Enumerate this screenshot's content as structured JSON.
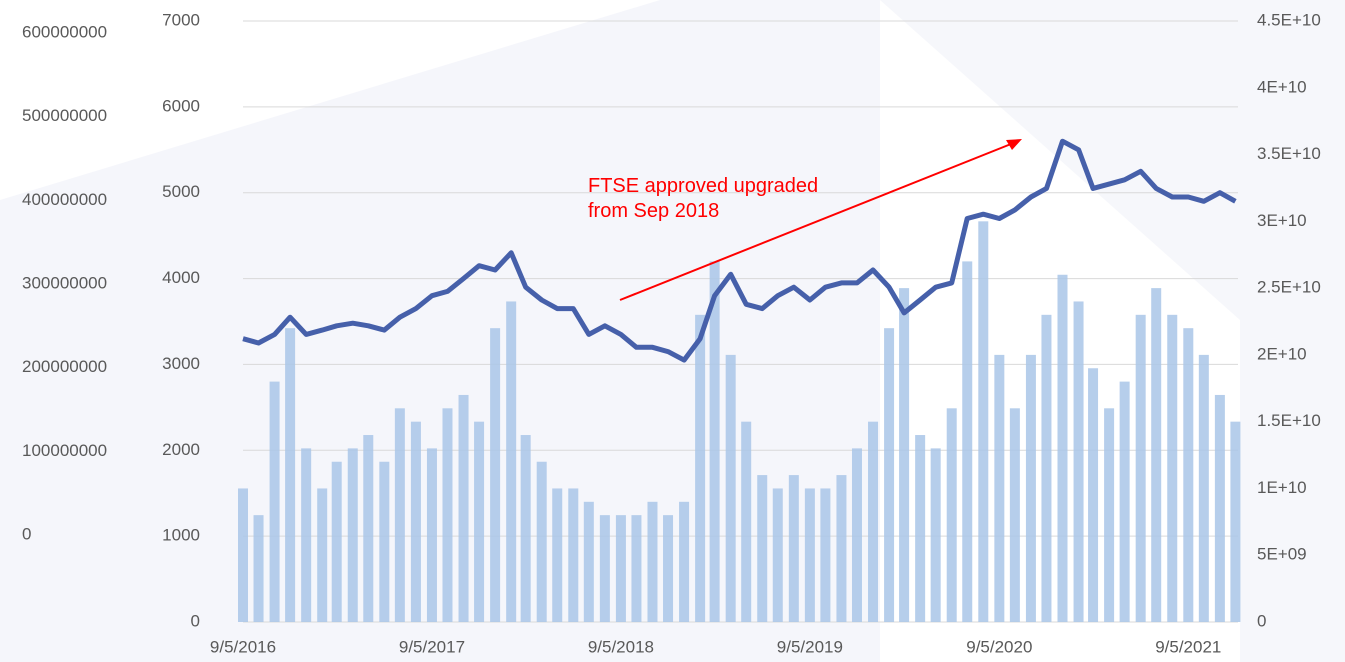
{
  "chart_data": {
    "type": "bar-line",
    "annotation": [
      "FTSE approved upgraded",
      "from Sep 2018"
    ],
    "annotation_color": "#ff0000",
    "x": [
      "9/5/2016",
      "10/5/2016",
      "11/5/2016",
      "12/5/2016",
      "1/5/2017",
      "2/5/2017",
      "3/5/2017",
      "4/5/2017",
      "5/5/2017",
      "6/5/2017",
      "7/5/2017",
      "8/5/2017",
      "9/5/2017",
      "10/5/2017",
      "11/5/2017",
      "12/5/2017",
      "1/5/2018",
      "2/5/2018",
      "3/5/2018",
      "4/5/2018",
      "5/5/2018",
      "6/5/2018",
      "7/5/2018",
      "8/5/2018",
      "9/5/2018",
      "10/5/2018",
      "11/5/2018",
      "12/5/2018",
      "1/5/2019",
      "2/5/2019",
      "3/5/2019",
      "4/5/2019",
      "5/5/2019",
      "6/5/2019",
      "7/5/2019",
      "8/5/2019",
      "9/5/2019",
      "10/5/2019",
      "11/5/2019",
      "12/5/2019",
      "1/5/2020",
      "2/5/2020",
      "3/5/2020",
      "4/5/2020",
      "5/5/2020",
      "6/5/2020",
      "7/5/2020",
      "8/5/2020",
      "9/5/2020",
      "10/5/2020",
      "11/5/2020",
      "12/5/2020",
      "1/5/2021",
      "2/5/2021",
      "3/5/2021",
      "4/5/2021",
      "5/5/2021",
      "6/5/2021",
      "7/5/2021",
      "8/5/2021",
      "9/5/2021",
      "10/5/2021",
      "11/5/2021",
      "12/5/2021"
    ],
    "series": [
      {
        "type": "bar",
        "axis": "y2",
        "color": "#a9c6e8",
        "values": [
          10000000000,
          8000000000,
          18000000000,
          22000000000,
          13000000000,
          10000000000,
          12000000000,
          13000000000,
          14000000000,
          12000000000,
          16000000000,
          15000000000,
          13000000000,
          16000000000,
          17000000000,
          15000000000,
          22000000000,
          24000000000,
          14000000000,
          12000000000,
          10000000000,
          10000000000,
          9000000000,
          8000000000,
          8000000000,
          8000000000,
          9000000000,
          8000000000,
          9000000000,
          23000000000,
          27000000000,
          20000000000,
          15000000000,
          11000000000,
          10000000000,
          11000000000,
          10000000000,
          10000000000,
          11000000000,
          13000000000,
          15000000000,
          22000000000,
          25000000000,
          14000000000,
          13000000000,
          16000000000,
          27000000000,
          30000000000,
          20000000000,
          16000000000,
          20000000000,
          23000000000,
          26000000000,
          24000000000,
          19000000000,
          16000000000,
          18000000000,
          23000000000,
          25000000000,
          23000000000,
          22000000000,
          20000000000,
          17000000000,
          15000000000
        ]
      },
      {
        "type": "line",
        "color": "#4660aa",
        "values": [
          3300,
          3250,
          3350,
          3550,
          3350,
          3400,
          3450,
          3480,
          3450,
          3400,
          3550,
          3650,
          3800,
          3850,
          4000,
          4150,
          4100,
          4300,
          3900,
          3750,
          3650,
          3650,
          3350,
          3450,
          3350,
          3200,
          3200,
          3150,
          3050,
          3300,
          3800,
          4050,
          3700,
          3650,
          3800,
          3900,
          3750,
          3900,
          3950,
          3950,
          4100,
          3900,
          3600,
          3750,
          3900,
          3950,
          4700,
          4750,
          4700,
          4800,
          4950,
          5050,
          5600,
          5500,
          5050,
          5100,
          5150,
          5250,
          5050,
          4950,
          4950,
          4900,
          5000,
          4900
        ]
      }
    ],
    "xlim": [
      "9/5/2016",
      "12/10/2021"
    ],
    "xticks": [
      "9/5/2016",
      "9/5/2017",
      "9/5/2018",
      "9/5/2019",
      "9/5/2020",
      "9/5/2021"
    ],
    "ylim": [
      0,
      7000
    ],
    "yticks": [
      0,
      1000,
      2000,
      3000,
      4000,
      5000,
      6000,
      7000
    ],
    "y2lim": [
      0,
      45000000000
    ],
    "y2ticks": [
      0,
      {
        "value": 5000000000,
        "label": "5E+09"
      },
      {
        "value": 10000000000,
        "label": "1E+10"
      },
      {
        "value": 15000000000,
        "label": "1.5E+10"
      },
      {
        "value": 20000000000,
        "label": "2E+10"
      },
      {
        "value": 25000000000,
        "label": "2.5E+10"
      },
      {
        "value": 30000000000,
        "label": "3E+10"
      },
      {
        "value": 35000000000,
        "label": "3.5E+10"
      },
      {
        "value": 40000000000,
        "label": "4E+10"
      },
      {
        "value": 45000000000,
        "label": "4.5E+10"
      }
    ],
    "y3lim": [
      0,
      600000000
    ],
    "y3ticks": [
      0,
      100000000,
      200000000,
      300000000,
      400000000,
      500000000,
      600000000
    ],
    "grid": true
  }
}
